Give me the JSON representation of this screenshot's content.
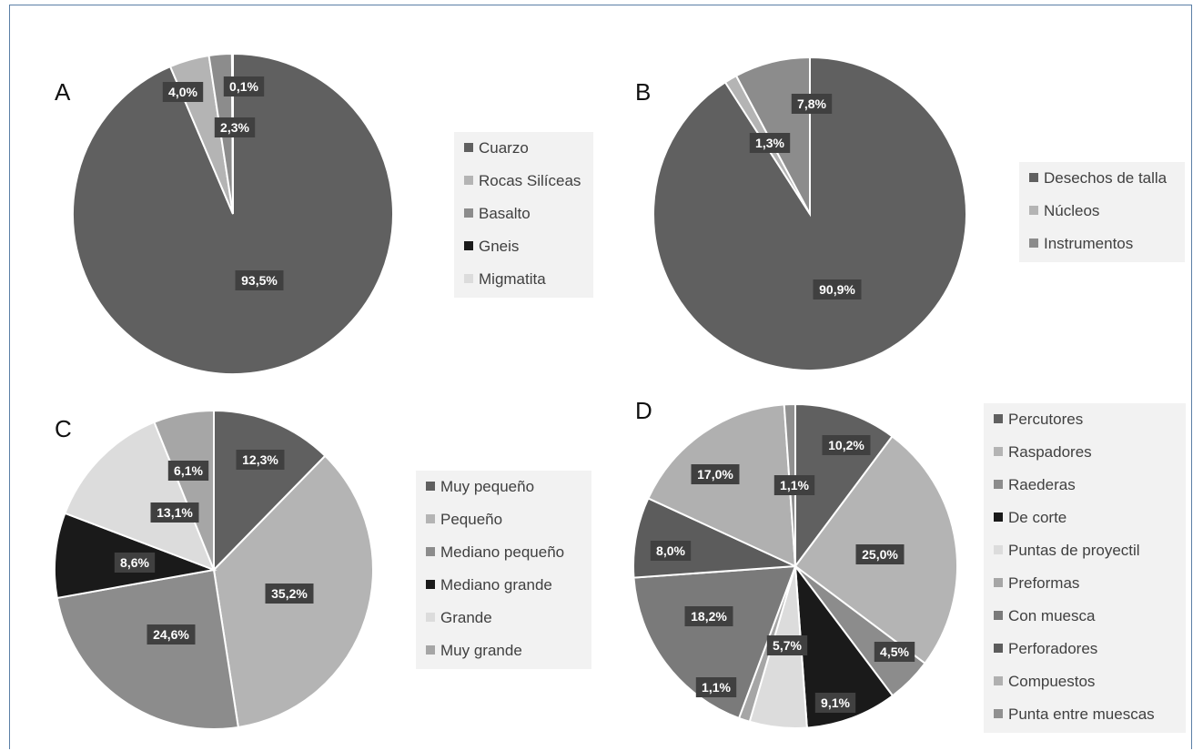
{
  "chart_data": [
    {
      "type": "pie",
      "panel": "A",
      "slices": [
        {
          "label": "Cuarzo",
          "value": 93.5,
          "text": "93,5%",
          "color": "#606060"
        },
        {
          "label": "Rocas Silíceas",
          "value": 4.0,
          "text": "4,0%",
          "color": "#b4b4b4"
        },
        {
          "label": "Basalto",
          "value": 2.3,
          "text": "2,3%",
          "color": "#8c8c8c"
        },
        {
          "label": "Gneis",
          "value": 0.0,
          "text": "",
          "color": "#1a1a1a"
        },
        {
          "label": "Migmatita",
          "value": 0.1,
          "text": "0,1%",
          "color": "#dcdcdc"
        }
      ]
    },
    {
      "type": "pie",
      "panel": "B",
      "slices": [
        {
          "label": "Desechos de talla",
          "value": 90.9,
          "text": "90,9%",
          "color": "#606060"
        },
        {
          "label": "Núcleos",
          "value": 1.3,
          "text": "1,3%",
          "color": "#b4b4b4"
        },
        {
          "label": "Instrumentos",
          "value": 7.8,
          "text": "7,8%",
          "color": "#8c8c8c"
        }
      ]
    },
    {
      "type": "pie",
      "panel": "C",
      "slices": [
        {
          "label": "Muy pequeño",
          "value": 12.3,
          "text": "12,3%",
          "color": "#606060"
        },
        {
          "label": "Pequeño",
          "value": 35.2,
          "text": "35,2%",
          "color": "#b4b4b4"
        },
        {
          "label": "Mediano pequeño",
          "value": 24.6,
          "text": "24,6%",
          "color": "#8c8c8c"
        },
        {
          "label": "Mediano grande",
          "value": 8.6,
          "text": "8,6%",
          "color": "#1a1a1a"
        },
        {
          "label": "Grande",
          "value": 13.1,
          "text": "13,1%",
          "color": "#dcdcdc"
        },
        {
          "label": "Muy grande",
          "value": 6.1,
          "text": "6,1%",
          "color": "#a6a6a6"
        }
      ]
    },
    {
      "type": "pie",
      "panel": "D",
      "slices": [
        {
          "label": "Percutores",
          "value": 10.2,
          "text": "10,2%",
          "color": "#606060"
        },
        {
          "label": "Raspadores",
          "value": 25.0,
          "text": "25,0%",
          "color": "#b4b4b4"
        },
        {
          "label": "Raederas",
          "value": 4.5,
          "text": "4,5%",
          "color": "#8c8c8c"
        },
        {
          "label": "De corte",
          "value": 9.1,
          "text": "9,1%",
          "color": "#1a1a1a"
        },
        {
          "label": "Puntas de proyectil",
          "value": 5.7,
          "text": "5,7%",
          "color": "#dcdcdc"
        },
        {
          "label": "Preformas",
          "value": 1.1,
          "text": "1,1%",
          "color": "#a6a6a6"
        },
        {
          "label": "Con muesca",
          "value": 18.2,
          "text": "18,2%",
          "color": "#7a7a7a"
        },
        {
          "label": "Perforadores",
          "value": 8.0,
          "text": "8,0%",
          "color": "#5c5c5c"
        },
        {
          "label": "Compuestos",
          "value": 17.0,
          "text": "17,0%",
          "color": "#b0b0b0"
        },
        {
          "label": "Punta entre muescas",
          "value": 1.1,
          "text": "1,1%",
          "color": "#909090"
        }
      ]
    }
  ]
}
